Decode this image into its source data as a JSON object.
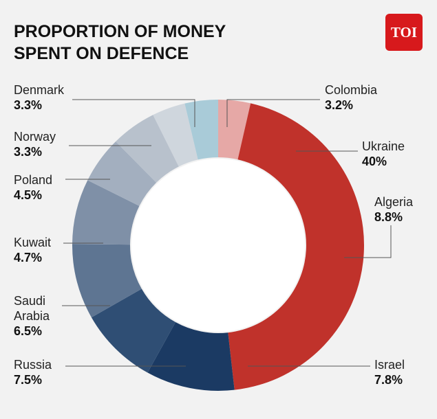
{
  "chart_data": {
    "type": "donut",
    "title": "PROPORTION OF MONEY SPENT ON DEFENCE",
    "logo": "TOI",
    "categories": [
      "Colombia",
      "Ukraine",
      "Algeria",
      "Israel",
      "Russia",
      "Saudi Arabia",
      "Kuwait",
      "Poland",
      "Norway",
      "Denmark"
    ],
    "values": [
      3.2,
      40,
      8.8,
      7.8,
      7.5,
      6.5,
      4.7,
      4.5,
      3.3,
      3.3
    ],
    "value_labels": [
      "3.2%",
      "40%",
      "8.8%",
      "7.8%",
      "7.5%",
      "6.5%",
      "4.7%",
      "4.5%",
      "3.3%",
      "3.3%"
    ],
    "colors": [
      "#e6a8a6",
      "#c0322b",
      "#1b3a63",
      "#2f4e74",
      "#5e7592",
      "#7f90a7",
      "#a3afbf",
      "#b8c1cc",
      "#cfd6dd",
      "#a9cbd8"
    ]
  }
}
